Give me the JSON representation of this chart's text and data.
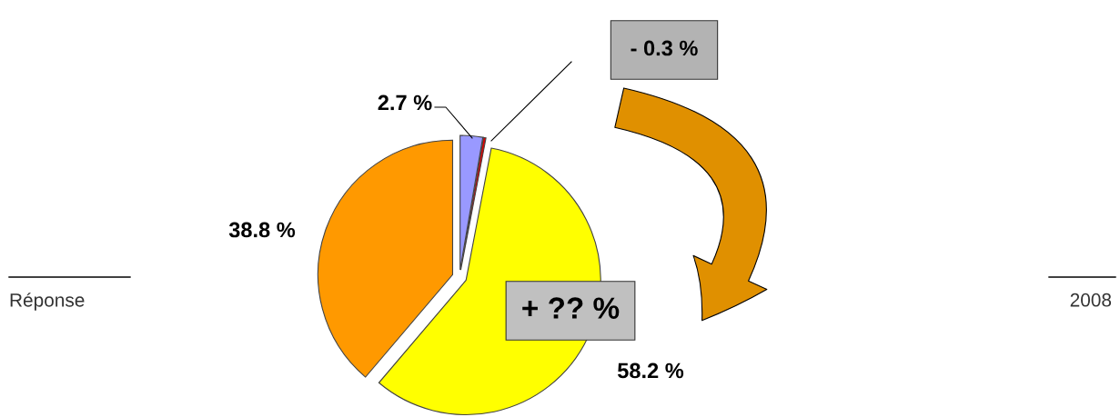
{
  "chart_data": {
    "type": "pie",
    "categories": [
      null,
      null,
      null,
      null
    ],
    "values": [
      2.7,
      0.3,
      58.2,
      38.8
    ],
    "colors": [
      "#9999ff",
      "#e00000",
      "#ffff00",
      "#ff9900"
    ],
    "value_labels": [
      "2.7 %",
      null,
      "58.2 %",
      "38.8 %"
    ],
    "annotations": [
      "Réponse",
      "2008",
      "+ ?? %",
      "- 0.3 %"
    ]
  }
}
